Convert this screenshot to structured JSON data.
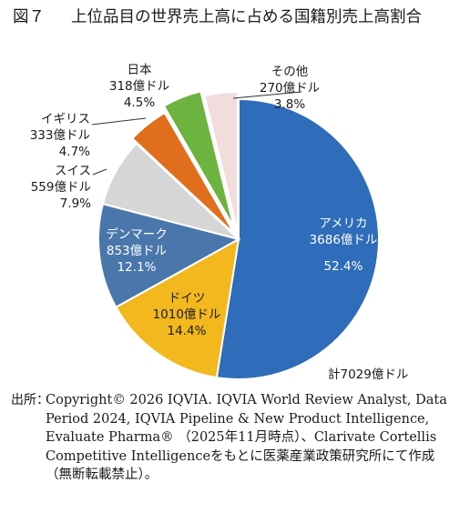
{
  "figure": {
    "number": "図７",
    "title": "上位品目の世界売上高に占める国籍別売上高割合"
  },
  "chart_data": {
    "type": "pie",
    "total_label": "計7029億ドル",
    "slices": [
      {
        "name": "アメリカ",
        "value_label": "3686億ドル",
        "percent": 52.4,
        "percent_label": "52.4%",
        "color": "#2f6cb9"
      },
      {
        "name": "ドイツ",
        "value_label": "1010億ドル",
        "percent": 14.4,
        "percent_label": "14.4%",
        "color": "#f2b81e"
      },
      {
        "name": "デンマーク",
        "value_label": "853億ドル",
        "percent": 12.1,
        "percent_label": "12.1%",
        "color": "#4a77ab"
      },
      {
        "name": "スイス",
        "value_label": "559億ドル",
        "percent": 7.9,
        "percent_label": "7.9%",
        "color": "#d6d6d6"
      },
      {
        "name": "イギリス",
        "value_label": "333億ドル",
        "percent": 4.7,
        "percent_label": "4.7%",
        "color": "#e06e1c"
      },
      {
        "name": "日本",
        "value_label": "318億ドル",
        "percent": 4.5,
        "percent_label": "4.5%",
        "color": "#6db33f"
      },
      {
        "name": "その他",
        "value_label": "270億ドル",
        "percent": 3.8,
        "percent_label": "3.8%",
        "color": "#f2dcdd"
      }
    ]
  },
  "source": {
    "label": "出所：",
    "text": "Copyright© 2026 IQVIA. IQVIA World Review Analyst, Data Period 2024, IQVIA Pipeline & New Product Intelligence, Evaluate Pharma® （2025年11月時点）、Clarivate Cortellis Competitive Intelligenceをもとに医薬産業政策研究所にて作成（無断転載禁止）。"
  }
}
